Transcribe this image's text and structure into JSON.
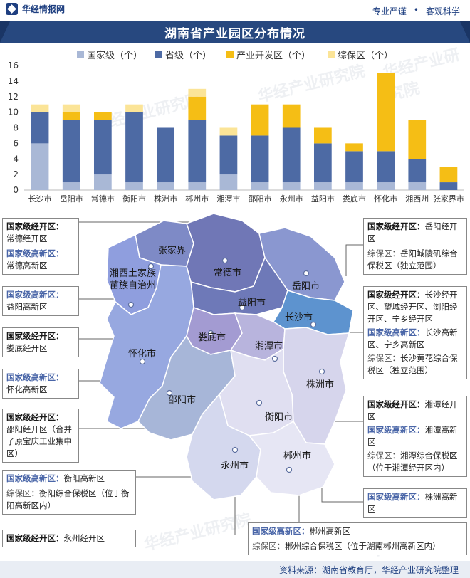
{
  "header": {
    "brand": "华经情报网",
    "slogan_left": "专业严谨",
    "slogan_sep": "•",
    "slogan_right": "客观科学"
  },
  "title": "湖南省产业园区分布情况",
  "chart_data": {
    "type": "bar",
    "stacked": true,
    "categories": [
      "长沙市",
      "岳阳市",
      "常德市",
      "衡阳市",
      "株洲市",
      "郴州市",
      "湘潭市",
      "邵阳市",
      "永州市",
      "益阳市",
      "娄底市",
      "怀化市",
      "湘西州",
      "张家界市"
    ],
    "series": [
      {
        "name": "国家级（个）",
        "color": "#a9b8d6",
        "values": [
          6,
          1,
          2,
          1,
          1,
          1,
          2,
          1,
          1,
          1,
          1,
          1,
          1,
          0
        ]
      },
      {
        "name": "省级（个）",
        "color": "#4d6aa4",
        "values": [
          4,
          8,
          7,
          9,
          7,
          8,
          5,
          6,
          7,
          5,
          4,
          4,
          3,
          1
        ]
      },
      {
        "name": "产业开发区（个）",
        "color": "#f5be15",
        "values": [
          0,
          1,
          1,
          0,
          0,
          3,
          0,
          4,
          3,
          2,
          1,
          10,
          5,
          2
        ]
      },
      {
        "name": "综保区（个）",
        "color": "#fbe497",
        "values": [
          1,
          1,
          0,
          1,
          0,
          1,
          1,
          0,
          0,
          0,
          0,
          0,
          0,
          0
        ]
      }
    ],
    "ylim": [
      0,
      16
    ],
    "yticks": [
      0,
      2,
      4,
      6,
      8,
      10,
      12,
      14,
      16
    ],
    "legend": "top",
    "grid": false
  },
  "map": {
    "regions": [
      {
        "name": "张家界",
        "color": "#7e8ac6"
      },
      {
        "name": "湘西土家族苗族自治州",
        "color": "#8f9ede"
      },
      {
        "name": "常德市",
        "color": "#7077b6"
      },
      {
        "name": "岳阳市",
        "color": "#8a97d0"
      },
      {
        "name": "益阳市",
        "color": "#6e79b8"
      },
      {
        "name": "长沙市",
        "color": "#5d93cf"
      },
      {
        "name": "怀化市",
        "color": "#97a8e0"
      },
      {
        "name": "娄底市",
        "color": "#a39bd2"
      },
      {
        "name": "湘潭市",
        "color": "#b8b4dd"
      },
      {
        "name": "邵阳市",
        "color": "#a7b6d8"
      },
      {
        "name": "株洲市",
        "color": "#d6d5ec"
      },
      {
        "name": "衡阳市",
        "color": "#e0dff1"
      },
      {
        "name": "永州市",
        "color": "#d4d8ee"
      },
      {
        "name": "郴州市",
        "color": "#e6e6f4"
      }
    ],
    "labels": {
      "zhangjiajie": "张家界",
      "xiangxi_1": "湘西土家族",
      "xiangxi_2": "苗族自治州",
      "changde": "常德市",
      "yueyang": "岳阳市",
      "yiyang": "益阳市",
      "changsha": "长沙市",
      "huaihua": "怀化市",
      "loudi": "娄底市",
      "xiangtan": "湘潭市",
      "zhuzhou": "株洲市",
      "shaoyang": "邵阳市",
      "hengyang": "衡阳市",
      "yongzhou": "永州市",
      "chenzhou": "郴州市"
    }
  },
  "boxes": {
    "changde": {
      "k1": "国家级经开区：",
      "v1": "常德经开区",
      "k2": "国家级高新区：",
      "v2": "常德高新区"
    },
    "yiyang": {
      "k2": "国家级高新区：",
      "v2": "益阳高新区"
    },
    "loudi": {
      "k1": "国家级经开区：",
      "v1": "娄底经开区"
    },
    "huaihua": {
      "k2": "国家级高新区：",
      "v2": "怀化高新区"
    },
    "shaoyang": {
      "k1": "国家级经开区：",
      "v1": "邵阳经开区（合并了原宝庆工业集中区）"
    },
    "hengyang": {
      "k2": "国家级高新区：",
      "v2": "衡阳高新区",
      "k3": "综保区：",
      "v3": "衡阳综合保税区（位于衡阳高新区内）"
    },
    "yongzhou": {
      "k1": "国家级经开区：",
      "v1": "永州经开区"
    },
    "yueyang": {
      "k1": "国家级经开区：",
      "v1": "岳阳经开区",
      "k3": "综保区：",
      "v3": "岳阳城陵矶综合保税区（独立范围）"
    },
    "changsha": {
      "k1": "国家级经开区：",
      "v1": "长沙经开区、望城经开区、浏阳经开区、宁乡经开区",
      "k2": "国家级高新区：",
      "v2": "长沙高新区、宁乡高新区",
      "k3": "综保区：",
      "v3": "长沙黄花综合保税区（独立范围）"
    },
    "xiangtan": {
      "k1": "国家级经开区：",
      "v1": "湘潭经开区",
      "k2": "国家级高新区：",
      "v2": "湘潭高新区",
      "k3": "综保区：",
      "v3": "湘潭综合保税区（位于湘潭经开区内）"
    },
    "zhuzhou": {
      "k2": "国家级高新区：",
      "v2": "株洲高新区"
    },
    "chenzhou": {
      "k2": "国家级高新区：",
      "v2": "郴州高新区",
      "k3": "综保区：",
      "v3": "郴州综合保税区（位于湖南郴州高新区内）"
    }
  },
  "footer": {
    "source": "资料来源：湖南省教育厅，华经产业研究院整理"
  },
  "watermarks": [
    "华经产业研究院",
    "www.huaon.com"
  ]
}
